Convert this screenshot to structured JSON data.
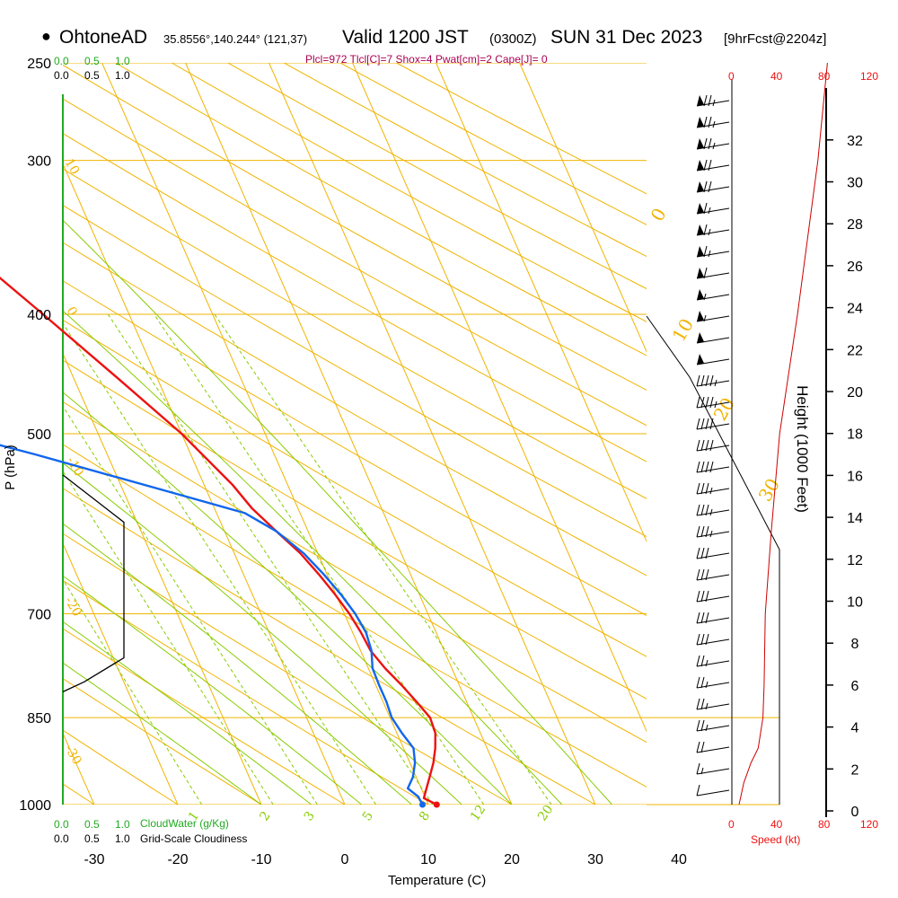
{
  "header": {
    "station_name": "OhtoneAD",
    "station_coords": "35.8556°,140.244° (121,37)",
    "valid_label": "Valid 1200 JST",
    "valid_utc": "(0300Z)",
    "valid_date": "SUN 31 Dec 2023",
    "forecast_label": "[9hrFcst@2204z]",
    "indices_line": "Plcl=972 Tlcl[C]=7 Shox=4 Pwat[cm]=2 Cape[J]= 0"
  },
  "scales": {
    "cloudwater_ticks": [
      "0.0",
      "0.5",
      "1.0"
    ],
    "cloudiness_ticks": [
      "0.0",
      "0.5",
      "1.0"
    ],
    "cloudwater_label": "CloudWater (g/Kg)",
    "cloudiness_label": "Grid-Scale Cloudiness",
    "speed_ticks": [
      "0",
      "40",
      "80",
      "120"
    ],
    "speed_label": "Speed (kt)"
  },
  "colors": {
    "isobar": "#f0b400",
    "dry_adiabat": "#f0b400",
    "moist_adiabat": "#88cc00",
    "mixing_ratio": "#88cc00",
    "temperature": "#ee1111",
    "dewpoint": "#1166ee",
    "cloud": "#000000",
    "speed_profile": "#cc0000",
    "green_axis": "#22aa22"
  },
  "chart_data": {
    "type": "line",
    "title": "Skew-T log-P sounding",
    "xlabel": "Temperature (C)",
    "ylabel": "P (hPa)",
    "right_ylabel": "Height (1000 Feet)",
    "pressure_ticks": [
      250,
      300,
      400,
      500,
      700,
      850,
      1000
    ],
    "temperature_ticks": [
      -30,
      -20,
      -10,
      0,
      10,
      20,
      30,
      40
    ],
    "height_ticks": [
      0,
      2,
      4,
      6,
      8,
      10,
      12,
      14,
      16,
      18,
      20,
      22,
      24,
      26,
      28,
      30,
      32
    ],
    "xlim": [
      -33,
      36
    ],
    "ylim_hpa": [
      1000,
      250
    ],
    "mixing_ratio_labels": [
      "1",
      "2",
      "3",
      "5",
      "8",
      "12",
      "20"
    ],
    "moist_adiabat_labels": [
      "0",
      "10",
      "20",
      "30"
    ],
    "dry_adiabat_labels": [
      "10",
      "0",
      "-10",
      "-20",
      "-30"
    ],
    "series": [
      {
        "name": "Temperature",
        "points": [
          [
            1000,
            11.0
          ],
          [
            988,
            9.8
          ],
          [
            975,
            10.4
          ],
          [
            950,
            11.6
          ],
          [
            925,
            12.8
          ],
          [
            900,
            13.8
          ],
          [
            875,
            14.6
          ],
          [
            850,
            14.8
          ],
          [
            825,
            14.0
          ],
          [
            800,
            13.1
          ],
          [
            775,
            12.0
          ],
          [
            750,
            11.2
          ],
          [
            725,
            11.0
          ],
          [
            700,
            10.6
          ],
          [
            675,
            9.9
          ],
          [
            650,
            9.0
          ],
          [
            625,
            7.9
          ],
          [
            600,
            6.2
          ],
          [
            575,
            4.5
          ],
          [
            550,
            3.4
          ],
          [
            500,
            0.0
          ],
          [
            450,
            -4.8
          ],
          [
            400,
            -10.3
          ],
          [
            350,
            -16.7
          ],
          [
            300,
            -24.2
          ],
          [
            275,
            -29.0
          ],
          [
            262,
            -31.0
          ]
        ]
      },
      {
        "name": "Dewpoint",
        "points": [
          [
            1000,
            9.3
          ],
          [
            985,
            9.2
          ],
          [
            970,
            8.4
          ],
          [
            950,
            9.6
          ],
          [
            925,
            10.6
          ],
          [
            900,
            11.2
          ],
          [
            875,
            10.6
          ],
          [
            850,
            10.2
          ],
          [
            825,
            10.4
          ],
          [
            800,
            10.4
          ],
          [
            775,
            10.5
          ],
          [
            750,
            11.3
          ],
          [
            725,
            11.6
          ],
          [
            700,
            11.3
          ],
          [
            675,
            10.6
          ],
          [
            650,
            9.6
          ],
          [
            625,
            8.3
          ],
          [
            600,
            6.2
          ],
          [
            580,
            3.4
          ],
          [
            560,
            -3.6
          ],
          [
            520,
            -18.5
          ],
          [
            500,
            -27.0
          ],
          [
            380,
            -36.0
          ],
          [
            370,
            -37.0
          ],
          [
            350,
            -38.0
          ],
          [
            320,
            -41.0
          ],
          [
            300,
            -43.0
          ],
          [
            262,
            -47.5
          ]
        ]
      }
    ],
    "cloudiness": [
      [
        540,
        0.0
      ],
      [
        590,
        1.0
      ],
      [
        760,
        1.0
      ],
      [
        795,
        0.35
      ],
      [
        810,
        0.0
      ]
    ],
    "wind_speed_kt": [
      [
        1000,
        6
      ],
      [
        960,
        10
      ],
      [
        925,
        16
      ],
      [
        900,
        22
      ],
      [
        850,
        26
      ],
      [
        800,
        27
      ],
      [
        700,
        28
      ],
      [
        600,
        33
      ],
      [
        500,
        40
      ],
      [
        400,
        55
      ],
      [
        300,
        72
      ],
      [
        250,
        80
      ]
    ]
  }
}
